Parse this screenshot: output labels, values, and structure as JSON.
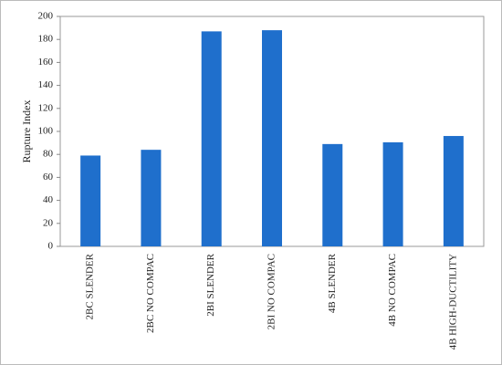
{
  "chart_data": {
    "type": "bar",
    "y_label": "Rupture Index",
    "categories": [
      "2BC SLENDER",
      "2BC NO COMPAC",
      "2BI SLENDER",
      "2BI NO COMPAC",
      "4B SLENDER",
      "4B NO COMPAC",
      "4B HIGH-DUCTILITY"
    ],
    "values": [
      79,
      84,
      187,
      188,
      89,
      90.5,
      96
    ],
    "color": "#1f6fcc",
    "ylim": [
      0,
      200
    ],
    "yticks": [
      0,
      20,
      40,
      60,
      80,
      100,
      120,
      140,
      160,
      180,
      200
    ],
    "grid": false
  }
}
